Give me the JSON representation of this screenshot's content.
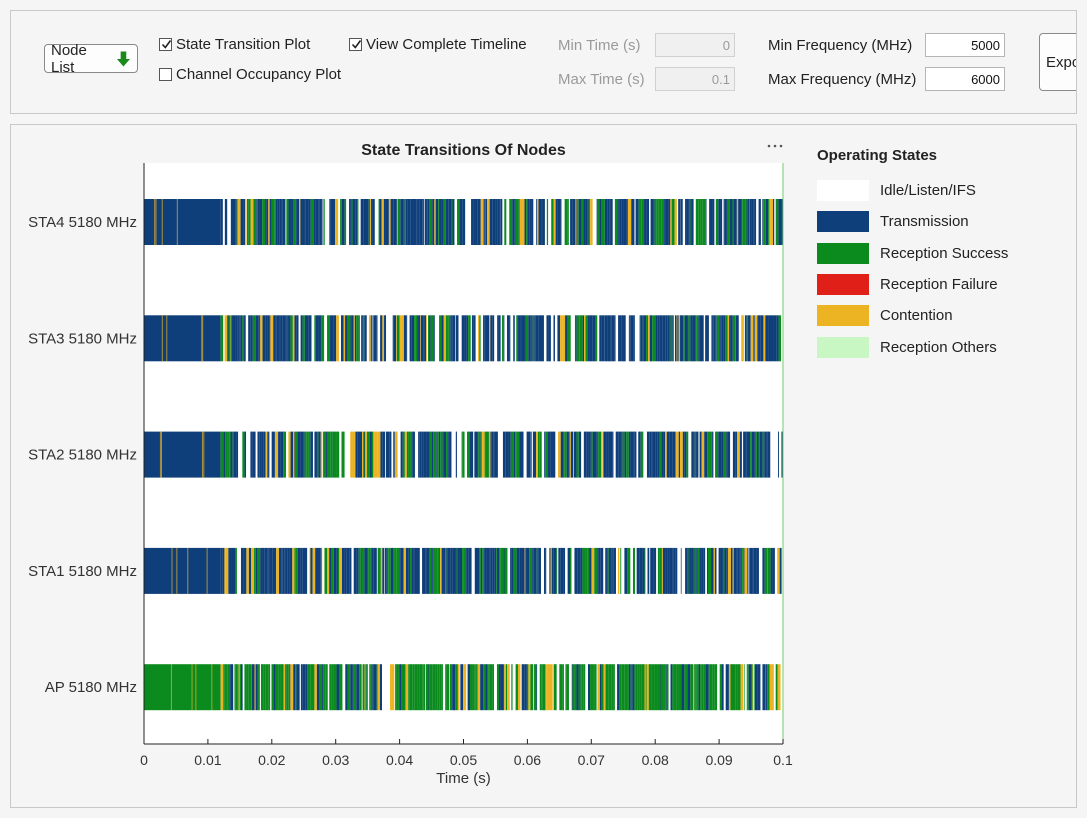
{
  "controls": {
    "node_list": "Node List",
    "state_transition_plot": {
      "label": "State Transition Plot",
      "checked": true
    },
    "channel_occupancy_plot": {
      "label": "Channel Occupancy Plot",
      "checked": false
    },
    "view_complete_timeline": {
      "label": "View Complete Timeline",
      "checked": true
    },
    "min_time": {
      "label": "Min Time (s)",
      "value": "0"
    },
    "max_time": {
      "label": "Max Time (s)",
      "value": "0.1"
    },
    "min_freq": {
      "label": "Min Frequency (MHz)",
      "value": "5000"
    },
    "max_freq": {
      "label": "Max Frequency (MHz)",
      "value": "6000"
    },
    "export": "Expo"
  },
  "chart_data": {
    "type": "timeline",
    "title": "State Transitions Of Nodes",
    "xlabel": "Time (s)",
    "xlim": [
      0,
      0.1
    ],
    "xticks": [
      "0",
      "0.01",
      "0.02",
      "0.03",
      "0.04",
      "0.05",
      "0.06",
      "0.07",
      "0.08",
      "0.09",
      "0.1"
    ],
    "nodes": [
      {
        "name": "STA4 5180 MHz",
        "dominant_state": "Transmission"
      },
      {
        "name": "STA3 5180 MHz",
        "dominant_state": "Transmission"
      },
      {
        "name": "STA2 5180 MHz",
        "dominant_state": "Transmission"
      },
      {
        "name": "STA1 5180 MHz",
        "dominant_state": "Transmission"
      },
      {
        "name": "AP 5180 MHz",
        "dominant_state": "Reception Success"
      }
    ],
    "sustained_activity_until": 0.012,
    "legend_title": "Operating States",
    "states": [
      {
        "name": "Idle/Listen/IFS",
        "color": "#ffffff"
      },
      {
        "name": "Transmission",
        "color": "#0f3f7a"
      },
      {
        "name": "Reception Success",
        "color": "#0b8a1e"
      },
      {
        "name": "Reception Failure",
        "color": "#e02018"
      },
      {
        "name": "Contention",
        "color": "#ecb422"
      },
      {
        "name": "Reception Others",
        "color": "#c9f7c4"
      }
    ]
  }
}
